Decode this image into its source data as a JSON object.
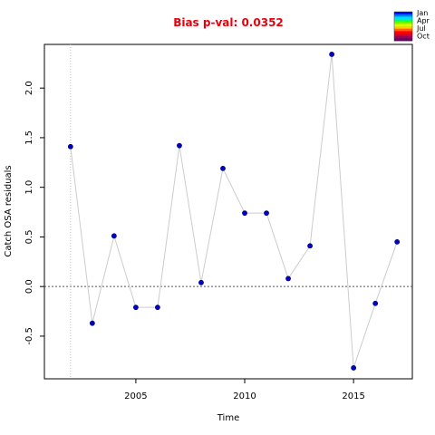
{
  "chart_data": {
    "type": "scatter",
    "title": "Bias p-val: 0.0352",
    "xlabel": "Time",
    "ylabel": "Catch OSA residuals",
    "x": [
      2002,
      2003,
      2004,
      2005,
      2006,
      2007,
      2008,
      2009,
      2010,
      2011,
      2012,
      2013,
      2014,
      2015,
      2016,
      2017
    ],
    "y": [
      1.41,
      -0.37,
      0.51,
      -0.21,
      -0.21,
      1.42,
      0.04,
      1.19,
      0.74,
      0.74,
      0.08,
      0.41,
      2.34,
      -0.82,
      -0.17,
      0.45
    ],
    "xlim": [
      2000.8,
      2017.7
    ],
    "ylim": [
      -0.93,
      2.44
    ],
    "xticks": [
      "2005",
      "2010",
      "2015"
    ],
    "yticks": [
      "-0.5",
      "0.0",
      "0.5",
      "1.0",
      "1.5",
      "2.0"
    ],
    "reference_hline": 0,
    "reference_vline": 2002,
    "point_color": "#0000cc",
    "line_color": "#cccccc",
    "title_color": "#e8000b",
    "legend": {
      "placement": "top-right",
      "labels": [
        "Jan",
        "Apr",
        "Jul",
        "Oct"
      ],
      "colors": [
        "#0000ff",
        "#0077ff",
        "#00ddff",
        "#00ff66",
        "#66ff00",
        "#ddff00",
        "#ffcc00",
        "#ff6600",
        "#ff0000",
        "#cc0033",
        "#99004d",
        "#660066"
      ]
    }
  }
}
